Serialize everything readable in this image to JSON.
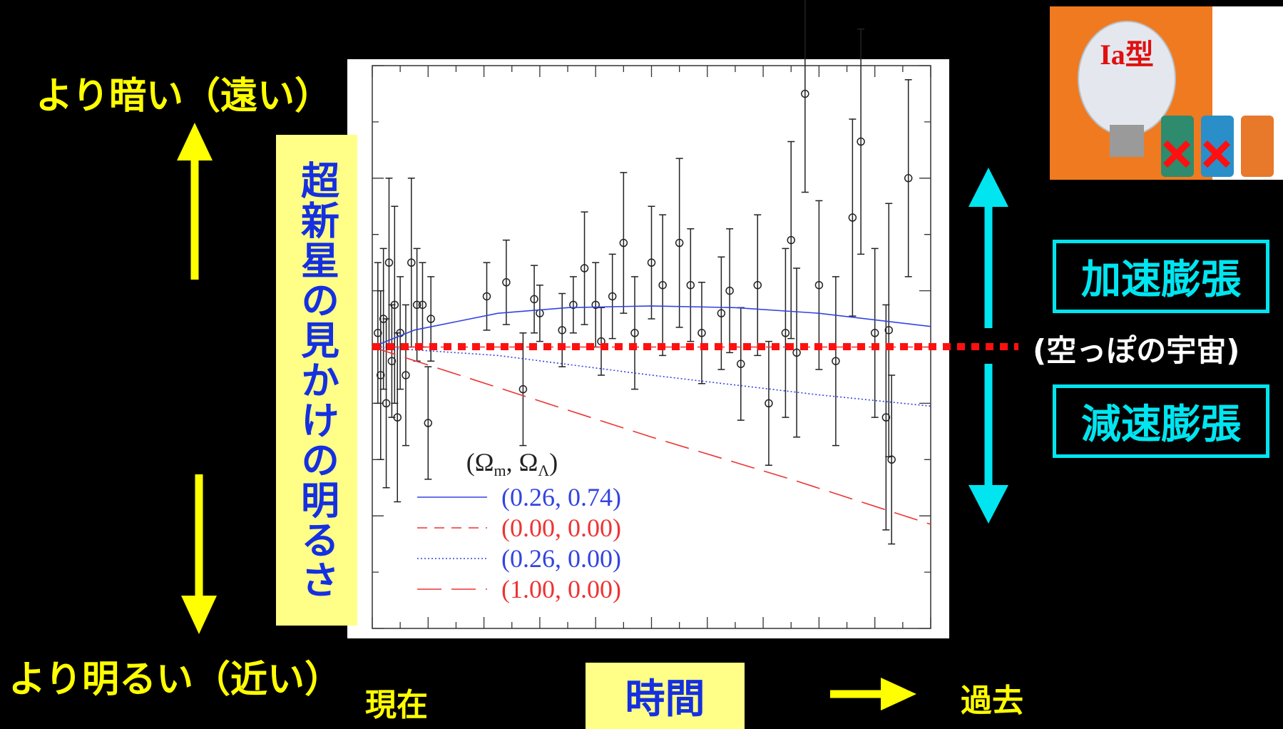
{
  "slide": {
    "dimmer": "より暗い（遠い）",
    "brighter": "より明るい（近い）",
    "y_label": "超新星の見かけの明るさ",
    "now": "現在",
    "time": "時間",
    "past": "過去",
    "accelerating": "加速膨張",
    "empty_universe": "(空っぽの宇宙)",
    "decelerating": "減速膨張",
    "inset_label": "Ia型"
  },
  "chart_data": {
    "type": "scatter",
    "legend_title_parts": [
      "(Ω",
      "m",
      ",  Ω",
      "Λ",
      ")"
    ],
    "xlim": [
      0,
      2
    ],
    "ylim": [
      -1,
      1
    ],
    "xticks": [
      0,
      0.1,
      0.2,
      0.3,
      0.4,
      0.5,
      0.6,
      0.7,
      0.8,
      0.9,
      1,
      1.1,
      1.2,
      1.3,
      1.4,
      1.5,
      1.6,
      1.7,
      1.8,
      1.9,
      2
    ],
    "yticks": [
      -1,
      -0.8,
      -0.6,
      -0.4,
      -0.2,
      0,
      0.2,
      0.4,
      0.6,
      0.8,
      1
    ],
    "series": [
      {
        "name": "(0.26, 0.74)",
        "color": "#3344e0",
        "style": "solid",
        "x": [
          0,
          0.15,
          0.3,
          0.45,
          0.7,
          1.0,
          1.3,
          1.6,
          2.0
        ],
        "values": [
          0,
          0.06,
          0.09,
          0.12,
          0.14,
          0.146,
          0.14,
          0.12,
          0.073
        ]
      },
      {
        "name": "(0.00, 0.00)",
        "color": "#ee3333",
        "style": "dashed",
        "x": [
          0,
          2.0
        ],
        "values": [
          0,
          0
        ]
      },
      {
        "name": "(0.26, 0.00)",
        "color": "#3344e0",
        "style": "dotted",
        "x": [
          0,
          0.45,
          1.0,
          1.6,
          2.0
        ],
        "values": [
          0,
          -0.03,
          -0.1,
          -0.17,
          -0.21
        ]
      },
      {
        "name": "(1.00, 0.00)",
        "color": "#ee3333",
        "style": "longdash",
        "x": [
          0,
          0.5,
          1.0,
          1.5,
          2.0
        ],
        "values": [
          0,
          -0.16,
          -0.32,
          -0.47,
          -0.63
        ]
      }
    ],
    "points": {
      "color": "#222222",
      "x": [
        0.02,
        0.03,
        0.04,
        0.05,
        0.06,
        0.07,
        0.08,
        0.09,
        0.1,
        0.12,
        0.14,
        0.16,
        0.18,
        0.2,
        0.21,
        0.41,
        0.48,
        0.54,
        0.58,
        0.6,
        0.68,
        0.72,
        0.76,
        0.8,
        0.82,
        0.86,
        0.9,
        0.94,
        1.0,
        1.04,
        1.1,
        1.14,
        1.18,
        1.25,
        1.28,
        1.32,
        1.38,
        1.42,
        1.48,
        1.5,
        1.52,
        1.55,
        1.6,
        1.66,
        1.72,
        1.75,
        1.8,
        1.84,
        1.85,
        1.86,
        1.92
      ],
      "values": [
        0.05,
        -0.1,
        0.1,
        -0.2,
        0.3,
        -0.05,
        0.15,
        -0.25,
        0.05,
        -0.1,
        0.3,
        0.15,
        0.15,
        -0.27,
        0.1,
        0.18,
        0.23,
        -0.15,
        0.17,
        0.12,
        0.06,
        0.15,
        0.28,
        0.15,
        0.02,
        0.18,
        0.37,
        0.05,
        0.3,
        0.22,
        0.37,
        0.22,
        0.05,
        0.12,
        0.2,
        -0.06,
        0.22,
        -0.2,
        0.05,
        0.38,
        -0.02,
        0.9,
        0.22,
        -0.05,
        0.46,
        0.73,
        0.05,
        -0.25,
        0.06,
        -0.4,
        0.6
      ],
      "errors": [
        0.25,
        0.3,
        0.25,
        0.3,
        0.3,
        0.2,
        0.35,
        0.3,
        0.2,
        0.25,
        0.3,
        0.2,
        0.15,
        0.2,
        0.15,
        0.12,
        0.15,
        0.2,
        0.12,
        0.1,
        0.13,
        0.1,
        0.2,
        0.15,
        0.12,
        0.15,
        0.25,
        0.2,
        0.2,
        0.25,
        0.3,
        0.2,
        0.18,
        0.2,
        0.22,
        0.2,
        0.25,
        0.22,
        0.3,
        0.35,
        0.3,
        0.35,
        0.3,
        0.3,
        0.35,
        0.4,
        0.3,
        0.4,
        0.45,
        0.3,
        0.35
      ]
    }
  }
}
